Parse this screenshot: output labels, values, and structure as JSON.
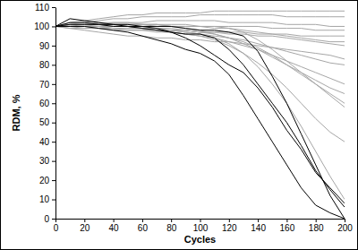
{
  "chart_data": {
    "type": "line",
    "x_label": "Cycles",
    "y_label": "RDM, %",
    "x": [
      0,
      10,
      20,
      30,
      40,
      50,
      60,
      70,
      80,
      90,
      100,
      110,
      120,
      130,
      140,
      150,
      160,
      170,
      180,
      190,
      200
    ],
    "xlim": [
      0,
      200
    ],
    "xticks": [
      0,
      20,
      40,
      60,
      80,
      100,
      120,
      140,
      160,
      180,
      200
    ],
    "ylim": [
      0,
      110
    ],
    "yticks": [
      0,
      10,
      20,
      30,
      40,
      50,
      60,
      70,
      80,
      90,
      100,
      110
    ],
    "grid": false,
    "series": [
      {
        "color": "#a6a6a6",
        "values": [
          100,
          102,
          103,
          104,
          105,
          106,
          106,
          107,
          107,
          107,
          107,
          108,
          108,
          108,
          108,
          108,
          108,
          108,
          108,
          108,
          108
        ]
      },
      {
        "color": "#a6a6a6",
        "values": [
          100,
          101,
          102,
          103,
          104,
          104,
          105,
          105,
          105,
          105,
          106,
          106,
          106,
          106,
          106,
          106,
          105,
          105,
          105,
          105,
          105
        ]
      },
      {
        "color": "#a6a6a6",
        "values": [
          100,
          100,
          101,
          101,
          102,
          102,
          102,
          103,
          103,
          103,
          103,
          103,
          102,
          102,
          102,
          102,
          101,
          101,
          101,
          100,
          100
        ]
      },
      {
        "color": "#a6a6a6",
        "values": [
          100,
          100,
          100,
          100,
          101,
          101,
          101,
          101,
          101,
          101,
          100,
          100,
          100,
          100,
          100,
          99,
          99,
          99,
          98,
          98,
          98
        ]
      },
      {
        "color": "#a6a6a6",
        "values": [
          100,
          99,
          99,
          99,
          98,
          98,
          98,
          98,
          98,
          98,
          97,
          97,
          97,
          97,
          96,
          96,
          96,
          95,
          95,
          95,
          95
        ]
      },
      {
        "color": "#a6a6a6",
        "values": [
          100,
          100,
          100,
          99,
          99,
          99,
          99,
          98,
          98,
          98,
          97,
          97,
          96,
          96,
          95,
          95,
          94,
          93,
          92,
          91,
          90
        ]
      },
      {
        "color": "#a6a6a6",
        "values": [
          100,
          99,
          98,
          97,
          96,
          95,
          95,
          94,
          94,
          93,
          93,
          92,
          92,
          91,
          90,
          89,
          88,
          87,
          86,
          85,
          83
        ]
      },
      {
        "color": "#a6a6a6",
        "values": [
          100,
          100,
          100,
          100,
          99,
          99,
          99,
          98,
          98,
          97,
          96,
          95,
          94,
          93,
          91,
          89,
          87,
          85,
          83,
          81,
          80
        ]
      },
      {
        "color": "#a6a6a6",
        "values": [
          100,
          100,
          99,
          99,
          99,
          98,
          98,
          97,
          97,
          96,
          95,
          94,
          92,
          90,
          88,
          85,
          82,
          79,
          76,
          73,
          70
        ]
      },
      {
        "color": "#a6a6a6",
        "values": [
          100,
          101,
          101,
          102,
          102,
          102,
          101,
          101,
          100,
          99,
          98,
          96,
          94,
          91,
          88,
          84,
          80,
          76,
          72,
          68,
          65
        ]
      },
      {
        "color": "#a6a6a6",
        "values": [
          100,
          100,
          100,
          100,
          100,
          100,
          99,
          99,
          99,
          98,
          97,
          96,
          94,
          92,
          89,
          85,
          80,
          75,
          70,
          65,
          60
        ]
      },
      {
        "color": "#a6a6a6",
        "values": [
          100,
          101,
          101,
          101,
          101,
          101,
          101,
          100,
          100,
          100,
          100,
          100,
          99,
          97,
          93,
          88,
          82,
          76,
          70,
          64,
          58
        ]
      },
      {
        "color": "#a6a6a6",
        "values": [
          100,
          100,
          100,
          100,
          99,
          99,
          99,
          98,
          97,
          96,
          95,
          93,
          90,
          86,
          81,
          75,
          68,
          60,
          52,
          45,
          40
        ]
      },
      {
        "color": "#a6a6a6",
        "values": [
          100,
          100,
          100,
          100,
          100,
          100,
          99,
          99,
          98,
          97,
          96,
          94,
          91,
          86,
          79,
          70,
          60,
          48,
          35,
          22,
          10
        ]
      },
      {
        "color": "#a6a6a6",
        "values": [
          100,
          100,
          100,
          101,
          101,
          101,
          101,
          101,
          100,
          100,
          100,
          99,
          99,
          98,
          97,
          96,
          95,
          94,
          93,
          92,
          92
        ]
      },
      {
        "color": "#000000",
        "values": [
          100,
          100,
          100,
          99,
          98,
          97,
          95,
          93,
          91,
          88,
          86,
          82,
          75,
          64,
          52,
          40,
          28,
          16,
          7,
          3,
          0
        ]
      },
      {
        "color": "#000000",
        "values": [
          100,
          104,
          103,
          102,
          101,
          100,
          99,
          98,
          97,
          96,
          96,
          94,
          88,
          80,
          70,
          60,
          50,
          38,
          25,
          15,
          6
        ]
      },
      {
        "color": "#000000",
        "values": [
          100,
          101,
          101,
          101,
          100,
          100,
          100,
          99,
          97,
          94,
          90,
          85,
          80,
          76,
          68,
          58,
          46,
          36,
          24,
          16,
          8
        ]
      },
      {
        "color": "#000000",
        "values": [
          100,
          102,
          102,
          101,
          101,
          101,
          100,
          100,
          100,
          99,
          98,
          98,
          97,
          95,
          87,
          74,
          60,
          44,
          28,
          12,
          0
        ]
      }
    ]
  }
}
